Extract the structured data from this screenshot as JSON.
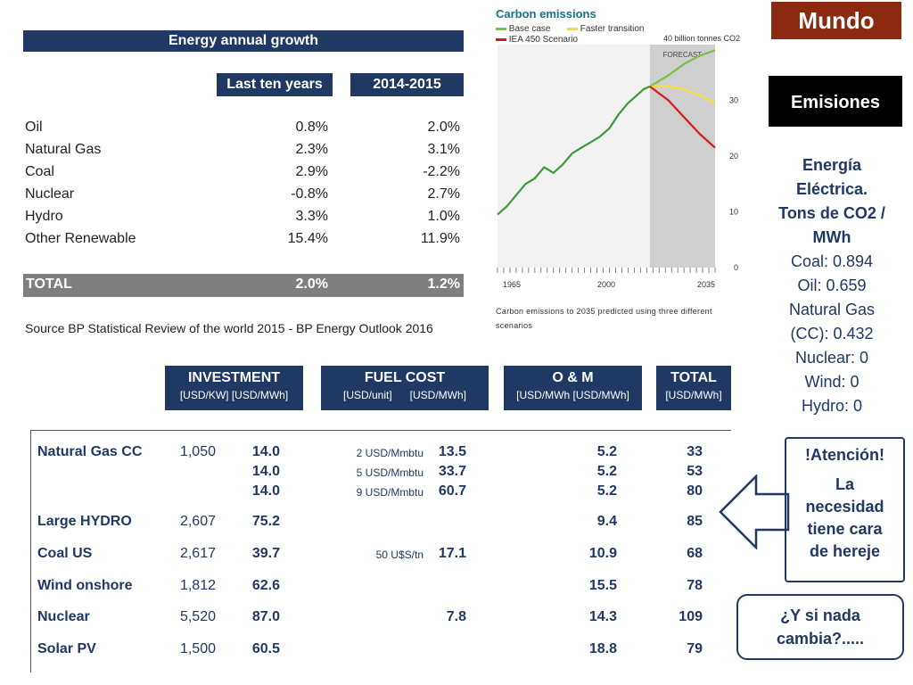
{
  "growth": {
    "title": "Energy annual growth",
    "col1": "Last ten years",
    "col2": "2014-2015",
    "rows": [
      {
        "label": "Oil",
        "v1": "0.8%",
        "v2": "2.0%"
      },
      {
        "label": "Natural Gas",
        "v1": "2.3%",
        "v2": "3.1%"
      },
      {
        "label": "Coal",
        "v1": "2.9%",
        "v2": "-2.2%"
      },
      {
        "label": "Nuclear",
        "v1": "-0.8%",
        "v2": "2.7%"
      },
      {
        "label": "Hydro",
        "v1": "3.3%",
        "v2": "1.0%"
      },
      {
        "label": "Other Renewable",
        "v1": "15.4%",
        "v2": "11.9%"
      }
    ],
    "total": {
      "label": "TOTAL",
      "v1": "2.0%",
      "v2": "1.2%"
    },
    "source": "Source BP Statistical Review of the world 2015 - BP Energy Outlook 2016"
  },
  "chart": {
    "title": "Carbon emissions",
    "legend": [
      "Base case",
      "Faster transition",
      "IEA 450 Scenario"
    ],
    "legend_colors": [
      "#7ac143",
      "#f5e03a",
      "#d7191c"
    ],
    "history_color": "#3a9a3a",
    "unit_label": "40 billion tonnes CO2",
    "forecast_label": "FORECAST",
    "yticks": [
      "0",
      "10",
      "20",
      "30"
    ],
    "xticks": [
      "1965",
      "2000",
      "2035"
    ],
    "caption1": "Carbon emissions to 2035 predicted using three different",
    "caption2": "scenarios"
  },
  "chart_data": {
    "type": "line",
    "title": "Carbon emissions",
    "ylim": [
      0,
      40
    ],
    "xlim": [
      1965,
      2035
    ],
    "forecast_start": 2014,
    "series": [
      {
        "name": "History",
        "x": [
          1965,
          1968,
          1971,
          1974,
          1977,
          1980,
          1983,
          1986,
          1989,
          1992,
          1995,
          1998,
          2001,
          2004,
          2007,
          2010,
          2012,
          2014
        ],
        "values": [
          9.5,
          11,
          13,
          15,
          16,
          18,
          17,
          18.5,
          20.5,
          21.5,
          22.5,
          23.5,
          25,
          27.5,
          29.5,
          31,
          32,
          32.5
        ]
      },
      {
        "name": "Base case",
        "x": [
          2014,
          2020,
          2025,
          2030,
          2035
        ],
        "values": [
          32.5,
          34.5,
          36.5,
          38,
          39
        ]
      },
      {
        "name": "Faster transition",
        "x": [
          2014,
          2020,
          2025,
          2030,
          2035
        ],
        "values": [
          32.5,
          32.5,
          32,
          31,
          29.5
        ]
      },
      {
        "name": "IEA 450 Scenario",
        "x": [
          2014,
          2020,
          2025,
          2030,
          2035
        ],
        "values": [
          32.5,
          30,
          27,
          24,
          21.5
        ]
      }
    ]
  },
  "costs": {
    "headers": [
      {
        "title": "INVESTMENT",
        "sub": "[USD/KW] [USD/MWh]"
      },
      {
        "title": "FUEL COST",
        "sub": "[USD/unit]      [USD/MWh]"
      },
      {
        "title": "O & M",
        "sub": "[USD/MWh [USD/MWh]"
      },
      {
        "title": "TOTAL",
        "sub": "[USD/MWh]"
      }
    ],
    "rows": [
      {
        "name": "Natural Gas CC",
        "kw": "1,050",
        "inv": [
          "14.0",
          "14.0",
          "14.0"
        ],
        "fuel_unit": [
          "2 USD/Mmbtu",
          "5 USD/Mmbtu",
          "9 USD/Mmbtu"
        ],
        "fuel": [
          "13.5",
          "33.7",
          "60.7"
        ],
        "om": [
          "5.2",
          "5.2",
          "5.2"
        ],
        "total": [
          "33",
          "53",
          "80"
        ]
      },
      {
        "name": "Large HYDRO",
        "kw": "2,607",
        "inv": [
          "75.2"
        ],
        "fuel_unit": [],
        "fuel": [],
        "om": [
          "9.4"
        ],
        "total": [
          "85"
        ]
      },
      {
        "name": "Coal US",
        "kw": "2,617",
        "inv": [
          "39.7"
        ],
        "fuel_unit": [
          "50 U$S/tn"
        ],
        "fuel": [
          "17.1"
        ],
        "om": [
          "10.9"
        ],
        "total": [
          "68"
        ]
      },
      {
        "name": "Wind onshore",
        "kw": "1,812",
        "inv": [
          "62.6"
        ],
        "fuel_unit": [],
        "fuel": [],
        "om": [
          "15.5"
        ],
        "total": [
          "78"
        ]
      },
      {
        "name": "Nuclear",
        "kw": "5,520",
        "inv": [
          "87.0"
        ],
        "fuel_unit": [],
        "fuel": [
          "7.8"
        ],
        "om": [
          "14.3"
        ],
        "total": [
          "109"
        ]
      },
      {
        "name": "Solar PV",
        "kw": "1,500",
        "inv": [
          "60.5"
        ],
        "fuel_unit": [],
        "fuel": [],
        "om": [
          "18.8"
        ],
        "total": [
          "79"
        ]
      }
    ]
  },
  "side": {
    "mundo": "Mundo",
    "emisiones": "Emisiones",
    "info_title": [
      "Energía",
      "Eléctrica.",
      "Tons de CO2 /",
      "MWh"
    ],
    "info_lines": [
      "Coal: 0.894",
      "Oil: 0.659",
      "Natural Gas",
      "(CC): 0.432",
      "Nuclear: 0",
      "Wind: 0",
      "Hydro: 0"
    ],
    "alert": [
      "!Atención!",
      "La",
      "necesidad",
      "tiene cara",
      "de hereje"
    ],
    "question": [
      "¿Y si nada",
      "cambia?....."
    ],
    "arrow_color": "#1f3864"
  }
}
